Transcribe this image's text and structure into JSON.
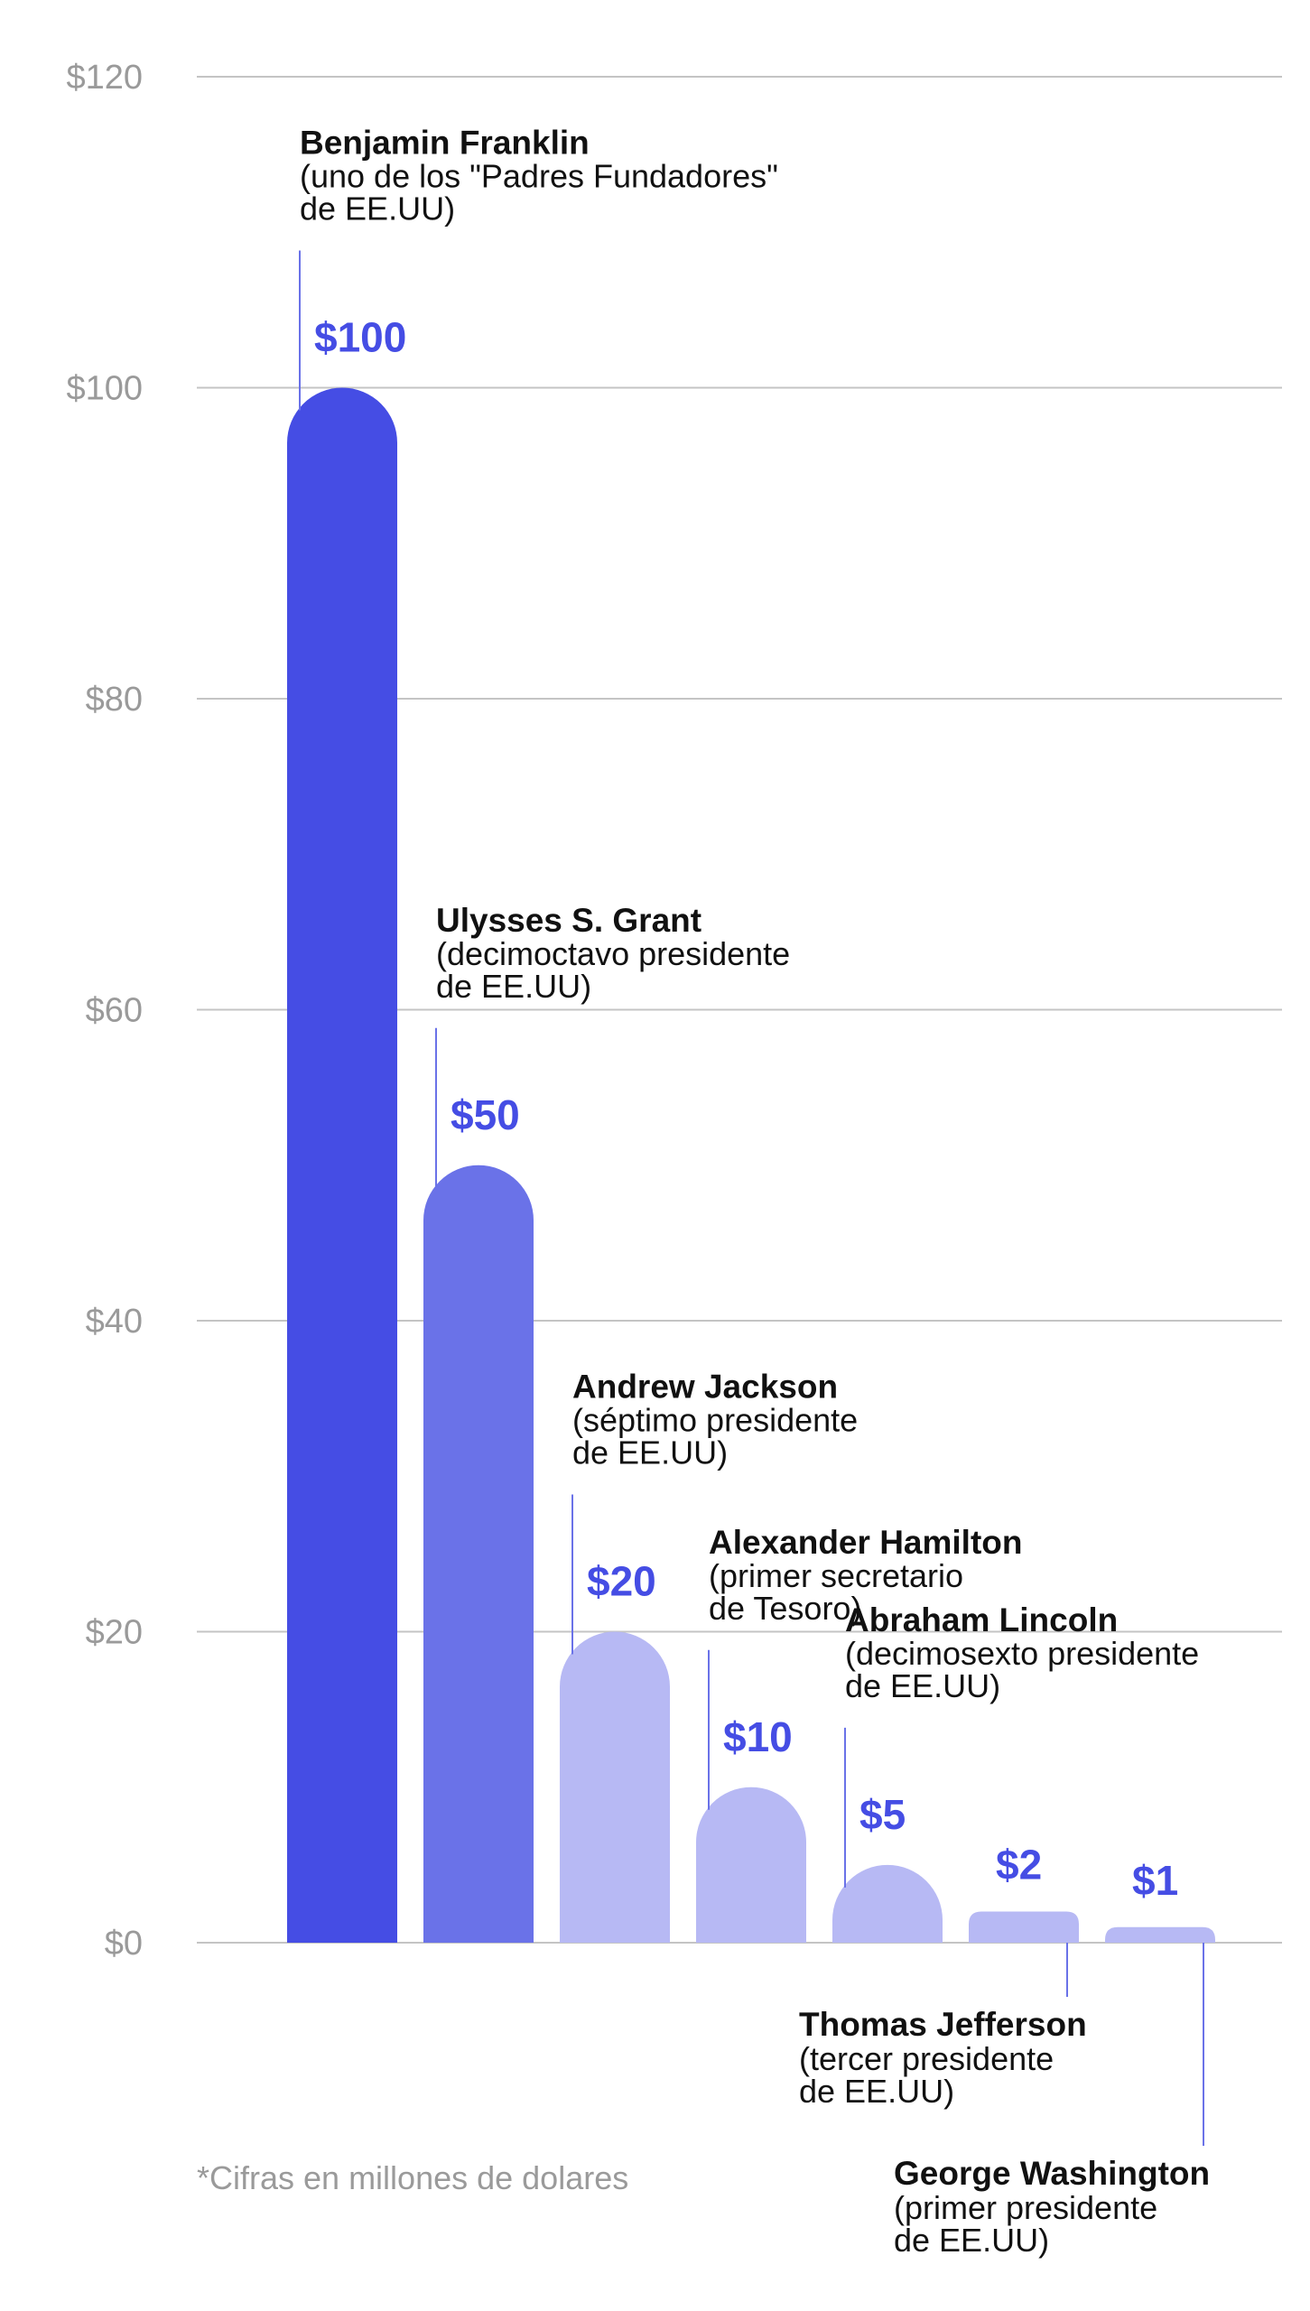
{
  "chart_data": {
    "type": "bar",
    "ylim": [
      0,
      120
    ],
    "y_ticks": [
      0,
      20,
      40,
      60,
      80,
      100,
      120
    ],
    "y_tick_labels": [
      "$0",
      "$20",
      "$40",
      "$60",
      "$80",
      "$100",
      "$120"
    ],
    "grid": true,
    "footnote": "*Cifras en millones de dolares",
    "colors": {
      "dark": "#454de4",
      "mid": "#6a72e8",
      "light": "#b7b9f4",
      "value_text": "#454de4",
      "grid": "#c4c4c4",
      "axis_text": "#9a9a9a",
      "leader": "#6a72e8"
    },
    "categories": [
      "Benjamin Franklin",
      "Ulysses S. Grant",
      "Andrew Jackson",
      "Alexander Hamilton",
      "Abraham Lincoln",
      "Thomas Jefferson",
      "George Washington"
    ],
    "values": [
      100,
      50,
      20,
      10,
      5,
      2,
      1
    ],
    "bars": [
      {
        "value": 100,
        "value_label": "$100",
        "name": "Benjamin Franklin",
        "desc": [
          "(uno de los \"Padres Fundadores\"",
          "de EE.UU)"
        ],
        "shade": "dark",
        "label_side": "top"
      },
      {
        "value": 50,
        "value_label": "$50",
        "name": "Ulysses S. Grant",
        "desc": [
          "(decimoctavo presidente",
          "de EE.UU)"
        ],
        "shade": "mid",
        "label_side": "top"
      },
      {
        "value": 20,
        "value_label": "$20",
        "name": "Andrew Jackson",
        "desc": [
          "(séptimo presidente",
          "de EE.UU)"
        ],
        "shade": "light",
        "label_side": "top"
      },
      {
        "value": 10,
        "value_label": "$10",
        "name": "Alexander Hamilton",
        "desc": [
          "(primer secretario",
          "de Tesoro)"
        ],
        "shade": "light",
        "label_side": "top"
      },
      {
        "value": 5,
        "value_label": "$5",
        "name": "Abraham Lincoln",
        "desc": [
          "(decimosexto presidente",
          "de EE.UU)"
        ],
        "shade": "light",
        "label_side": "top"
      },
      {
        "value": 2,
        "value_label": "$2",
        "name": "Thomas Jefferson",
        "desc": [
          "(tercer presidente",
          "de EE.UU)"
        ],
        "shade": "light",
        "label_side": "bottom"
      },
      {
        "value": 1,
        "value_label": "$1",
        "name": "George Washington",
        "desc": [
          "(primer presidente",
          "de EE.UU)"
        ],
        "shade": "light",
        "label_side": "bottom"
      }
    ]
  }
}
